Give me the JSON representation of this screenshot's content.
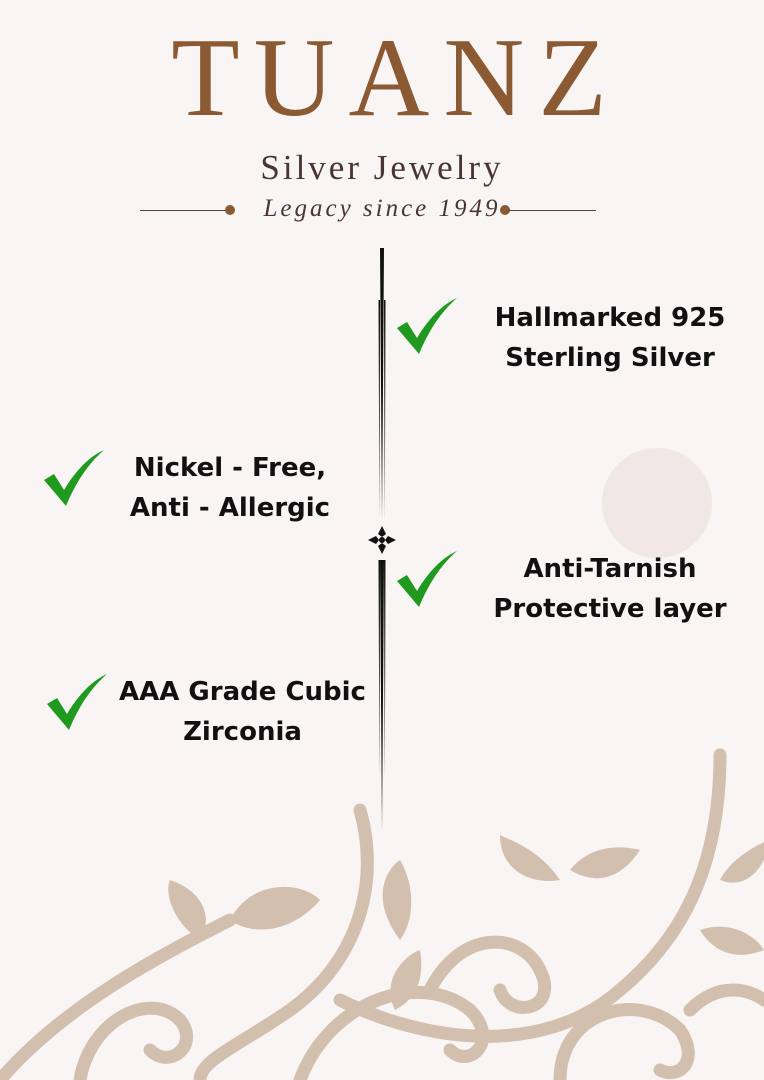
{
  "brand": {
    "name": "TUANZ",
    "subtitle": "Silver Jewelry",
    "tagline": "Legacy since 1949"
  },
  "colors": {
    "brand": "#8b5a33",
    "text": "#4a3535",
    "check": "#1f9a1f",
    "vine": "#d3bfae",
    "background": "#f8f5f4"
  },
  "features": [
    {
      "line1": "Hallmarked 925",
      "line2": "Sterling Silver",
      "icon": "check-icon"
    },
    {
      "line1": "Nickel - Free,",
      "line2": "Anti - Allergic",
      "icon": "check-icon"
    },
    {
      "line1": "Anti-Tarnish",
      "line2": "Protective layer",
      "icon": "check-icon"
    },
    {
      "line1": "AAA Grade Cubic",
      "line2": "Zirconia",
      "icon": "check-icon"
    }
  ]
}
